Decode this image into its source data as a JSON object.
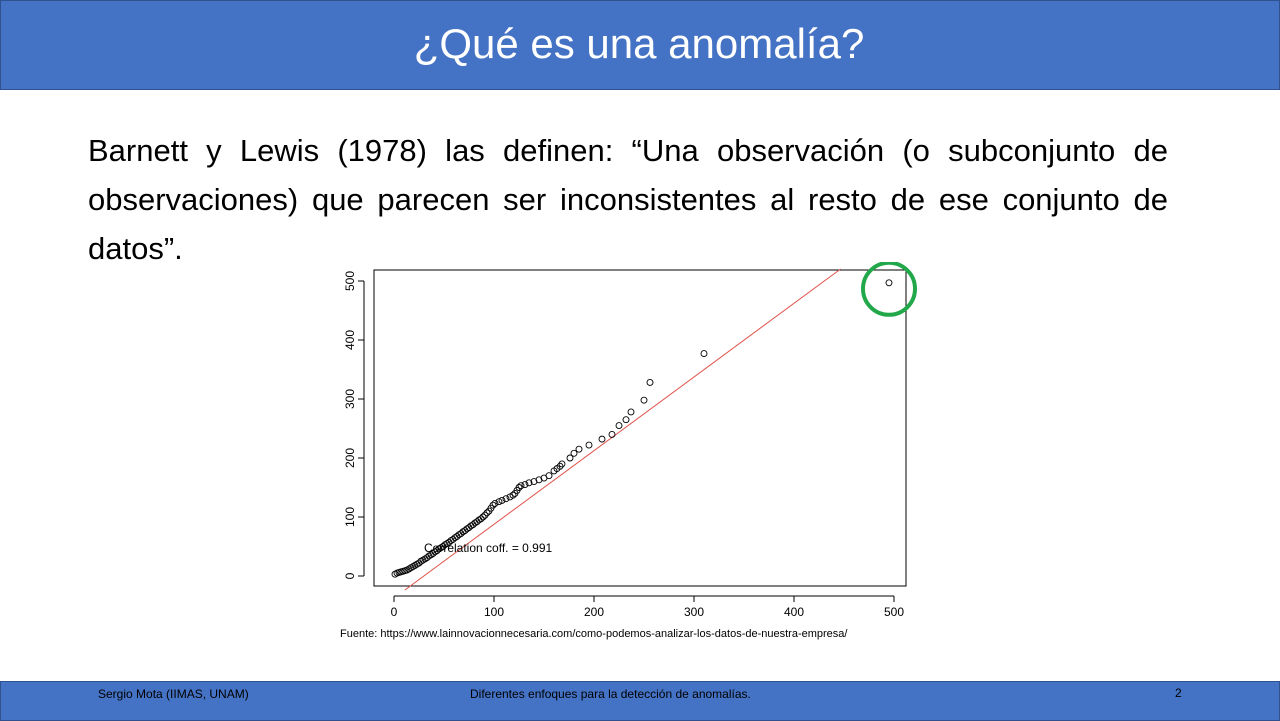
{
  "slide": {
    "title": "¿Qué es una anomalía?",
    "body": "Barnett y Lewis (1978) las definen: “Una observación (o subconjunto de observaciones) que parecen ser inconsistentes al resto de ese conjunto de datos”.",
    "source": "Fuente: https://www.lainnovacionnecesaria.com/como-podemos-analizar-los-datos-de-nuestra-empresa/"
  },
  "footer": {
    "author": "Sergio Mota (IIMAS, UNAM)",
    "topic": "Diferentes enfoques para la detección de anomalías.",
    "page": "2"
  },
  "colors": {
    "header": "#4472c4",
    "fit_line": "#e0524a",
    "highlight": "#22a84a"
  },
  "chart_data": {
    "type": "scatter",
    "annotation": "Correlation coff. = 0.991",
    "xlim": [
      0,
      500
    ],
    "ylim": [
      0,
      500
    ],
    "xticks": [
      "0",
      "100",
      "200",
      "300",
      "400",
      "500"
    ],
    "yticks": [
      "0",
      "100",
      "200",
      "300",
      "400",
      "500"
    ],
    "fit_line": {
      "slope": 1.18,
      "intercept": -27
    },
    "points": [
      [
        1,
        3
      ],
      [
        3,
        5
      ],
      [
        5,
        6
      ],
      [
        7,
        7
      ],
      [
        9,
        8
      ],
      [
        11,
        9
      ],
      [
        13,
        10
      ],
      [
        15,
        12
      ],
      [
        17,
        14
      ],
      [
        19,
        16
      ],
      [
        21,
        18
      ],
      [
        23,
        20
      ],
      [
        25,
        22
      ],
      [
        27,
        25
      ],
      [
        29,
        27
      ],
      [
        31,
        29
      ],
      [
        33,
        31
      ],
      [
        35,
        34
      ],
      [
        37,
        36
      ],
      [
        39,
        38
      ],
      [
        41,
        41
      ],
      [
        43,
        43
      ],
      [
        45,
        46
      ],
      [
        47,
        48
      ],
      [
        49,
        50
      ],
      [
        51,
        53
      ],
      [
        53,
        55
      ],
      [
        55,
        57
      ],
      [
        57,
        60
      ],
      [
        59,
        62
      ],
      [
        61,
        65
      ],
      [
        63,
        67
      ],
      [
        65,
        70
      ],
      [
        67,
        72
      ],
      [
        69,
        75
      ],
      [
        71,
        77
      ],
      [
        73,
        80
      ],
      [
        75,
        82
      ],
      [
        77,
        85
      ],
      [
        79,
        87
      ],
      [
        81,
        90
      ],
      [
        83,
        92
      ],
      [
        85,
        95
      ],
      [
        87,
        97
      ],
      [
        89,
        100
      ],
      [
        91,
        103
      ],
      [
        93,
        107
      ],
      [
        95,
        110
      ],
      [
        97,
        115
      ],
      [
        99,
        120
      ],
      [
        101,
        123
      ],
      [
        105,
        126
      ],
      [
        108,
        128
      ],
      [
        112,
        131
      ],
      [
        116,
        134
      ],
      [
        119,
        137
      ],
      [
        121,
        140
      ],
      [
        123,
        145
      ],
      [
        125,
        150
      ],
      [
        127,
        153
      ],
      [
        131,
        155
      ],
      [
        135,
        158
      ],
      [
        140,
        160
      ],
      [
        145,
        163
      ],
      [
        150,
        166
      ],
      [
        155,
        170
      ],
      [
        160,
        178
      ],
      [
        163,
        182
      ],
      [
        166,
        186
      ],
      [
        168,
        190
      ],
      [
        176,
        200
      ],
      [
        180,
        208
      ],
      [
        185,
        215
      ],
      [
        195,
        222
      ],
      [
        208,
        232
      ],
      [
        218,
        240
      ],
      [
        225,
        255
      ],
      [
        232,
        265
      ],
      [
        237,
        278
      ],
      [
        250,
        298
      ],
      [
        256,
        328
      ],
      [
        310,
        377
      ],
      [
        495,
        497
      ]
    ],
    "outlier": [
      495,
      497
    ]
  }
}
